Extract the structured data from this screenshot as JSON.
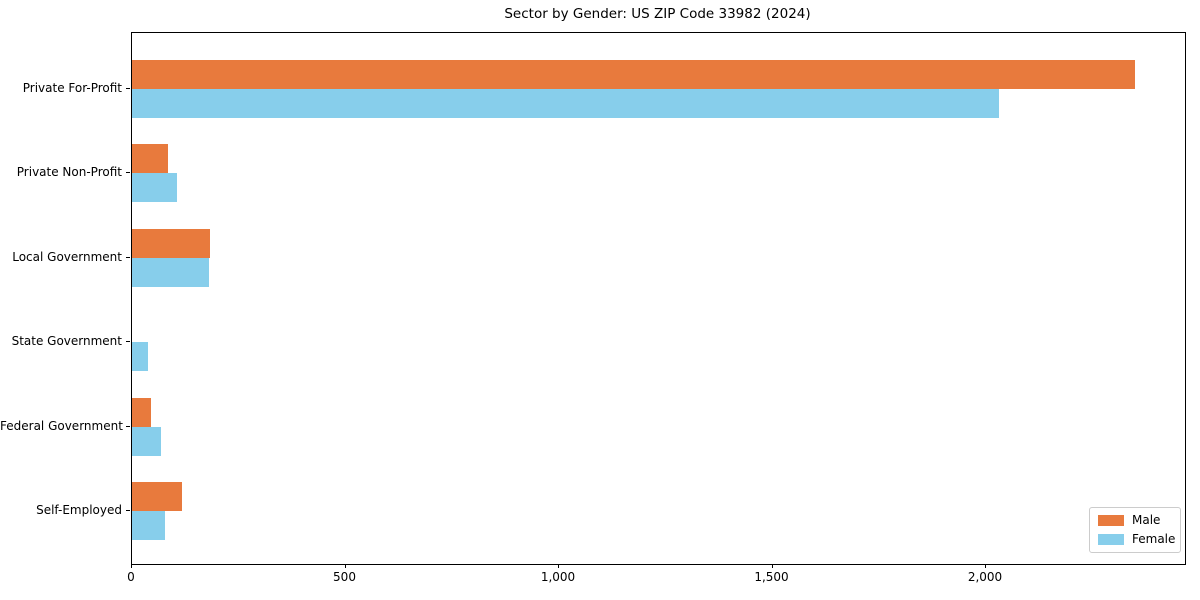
{
  "title": "Sector by Gender: US ZIP Code 33982 (2024)",
  "chart_data": {
    "type": "bar",
    "orientation": "horizontal",
    "title": "Sector by Gender: US ZIP Code 33982 (2024)",
    "categories": [
      "Private For-Profit",
      "Private Non-Profit",
      "Local Government",
      "State Government",
      "Federal Government",
      "Self-Employed"
    ],
    "series": [
      {
        "name": "Male",
        "color": "#e87a3d",
        "values": [
          2349,
          85,
          182,
          0,
          45,
          118
        ]
      },
      {
        "name": "Female",
        "color": "#87ceeb",
        "values": [
          2030,
          106,
          180,
          37,
          67,
          77
        ]
      }
    ],
    "xlabel": "",
    "ylabel": "",
    "xlim": [
      0,
      2466
    ],
    "xticks": [
      0,
      500,
      1000,
      1500,
      2000
    ],
    "xtick_labels": [
      "0",
      "500",
      "1,000",
      "1,500",
      "2,000"
    ],
    "legend_position": "lower right",
    "legend_entries": [
      "Male",
      "Female"
    ],
    "grid": false,
    "frame_color": "#000000",
    "background_color": "#ffffff"
  }
}
